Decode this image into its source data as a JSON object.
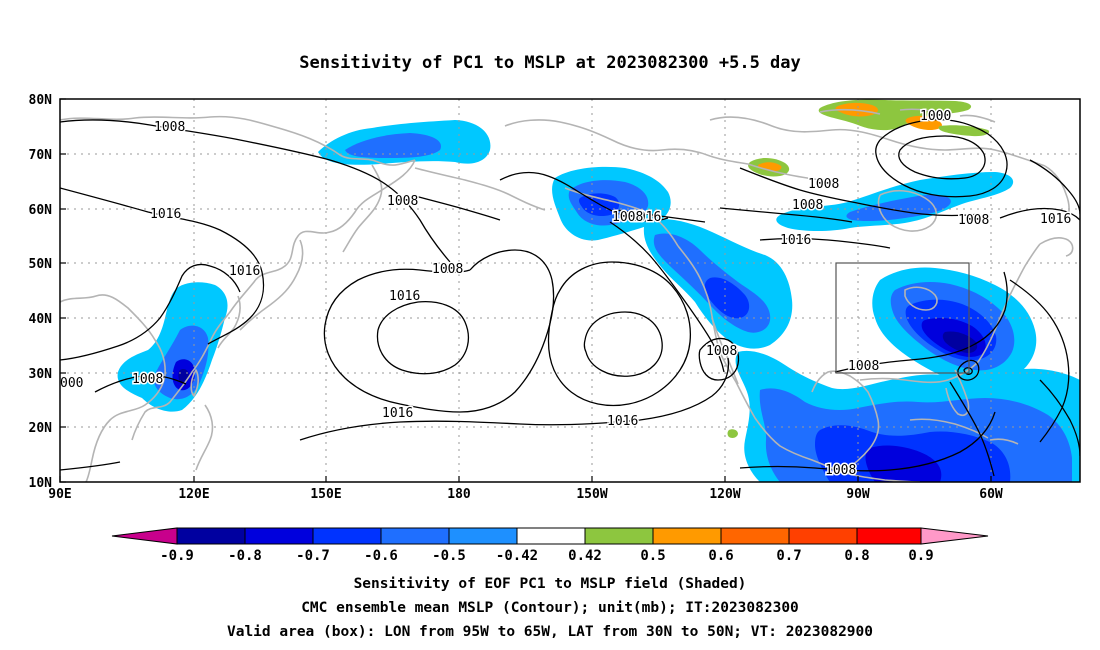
{
  "title": "Sensitivity of PC1 to MSLP at 2023082300 +5.5 day",
  "map": {
    "lon_range": [
      "90E",
      "40W"
    ],
    "lat_range": [
      "10N",
      "80N"
    ],
    "lon_ticks": [
      "90E",
      "120E",
      "150E",
      "180",
      "150W",
      "120W",
      "90W",
      "60W"
    ],
    "lat_ticks": [
      "80N",
      "70N",
      "60N",
      "50N",
      "40N",
      "30N",
      "20N",
      "10N"
    ],
    "contour_labels": [
      "1008",
      "1008",
      "1016",
      "1016",
      "1008",
      "1008",
      "1016",
      "1008",
      "1016",
      "1016",
      "1008",
      "1016",
      "1016",
      "1008",
      "1016",
      "1008",
      "1008",
      "1008",
      "1008",
      "1000",
      "000",
      "1016"
    ],
    "valid_box": {
      "lon_from": "95W",
      "lon_to": "65W",
      "lat_from": "30N",
      "lat_to": "50N"
    },
    "colors": {
      "neg_09": "#0000a0",
      "neg_08": "#0000dd",
      "neg_07": "#0033ff",
      "neg_06": "#1f6fff",
      "neg_05": "#1e90ff",
      "neg_042": "#00c8ff",
      "pos_042": "#8dc63f",
      "pos_05": "#ff9a00",
      "pos_06": "#ff6600",
      "pos_07": "#ff4000",
      "pos_08": "#ff0000",
      "low_tri": "#c8008c",
      "high_tri": "#ff99c8",
      "land": "#b4b4b4"
    }
  },
  "colorbar": {
    "labels": [
      "-0.9",
      "-0.8",
      "-0.7",
      "-0.6",
      "-0.5",
      "-0.42",
      "0.42",
      "0.5",
      "0.6",
      "0.7",
      "0.8",
      "0.9"
    ]
  },
  "captions": {
    "line1": "Sensitivity of EOF PC1 to MSLP field (Shaded)",
    "line2": "CMC ensemble mean MSLP (Contour); unit(mb); IT:2023082300",
    "line3": "Valid area (box): LON from 95W to 65W, LAT from 30N to 50N; VT: 2023082900"
  }
}
